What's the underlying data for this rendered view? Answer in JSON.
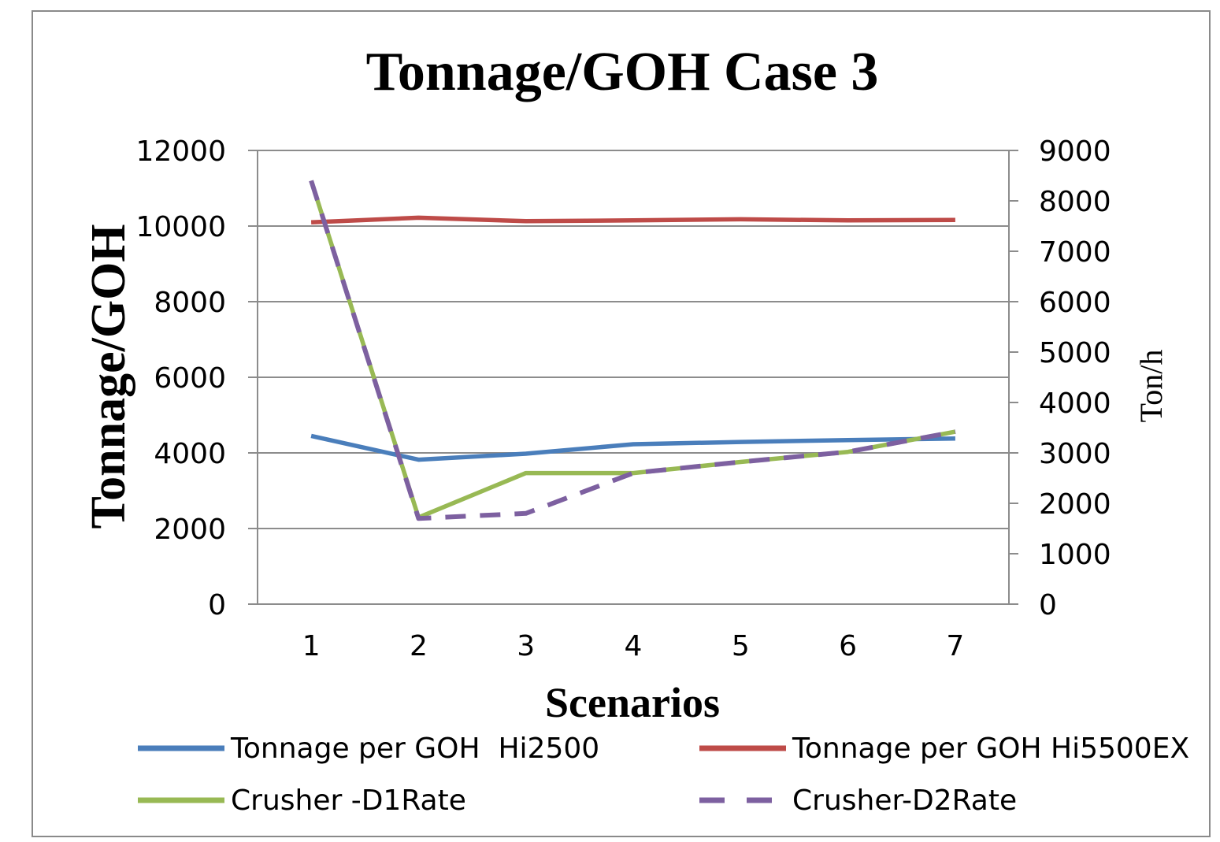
{
  "chart_data": {
    "type": "line",
    "title": "Tonnage/GOH Case 3",
    "xlabel": "Scenarios",
    "ylabel": "Tonnage/GOH",
    "y2label": "Ton/h",
    "categories": [
      "1",
      "2",
      "3",
      "4",
      "5",
      "6",
      "7"
    ],
    "ylim": [
      0,
      12000
    ],
    "y2lim": [
      0,
      9000
    ],
    "yticks": [
      "0",
      "2000",
      "4000",
      "6000",
      "8000",
      "10000",
      "12000"
    ],
    "y2ticks": [
      "0",
      "1000",
      "2000",
      "3000",
      "4000",
      "5000",
      "6000",
      "7000",
      "8000",
      "9000"
    ],
    "grid": true,
    "legend_position": "bottom",
    "series": [
      {
        "name": "Tonnage per GOH  Hi2500",
        "axis": "left",
        "color": "#4a7ebb",
        "dash": false,
        "values": [
          4450,
          3820,
          3980,
          4230,
          4290,
          4340,
          4380
        ]
      },
      {
        "name": "Tonnage per GOH Hi5500EX",
        "axis": "left",
        "color": "#be4b48",
        "dash": false,
        "values": [
          10100,
          10220,
          10130,
          10150,
          10180,
          10150,
          10160
        ]
      },
      {
        "name": "Crusher -D1Rate",
        "axis": "right",
        "color": "#98b954",
        "dash": false,
        "values": [
          8400,
          1720,
          2600,
          2600,
          2820,
          3020,
          3420
        ]
      },
      {
        "name": "Crusher-D2Rate",
        "axis": "right",
        "color": "#7d60a0",
        "dash": true,
        "values": [
          8400,
          1700,
          1800,
          2600,
          2820,
          3020,
          3420
        ]
      }
    ]
  }
}
